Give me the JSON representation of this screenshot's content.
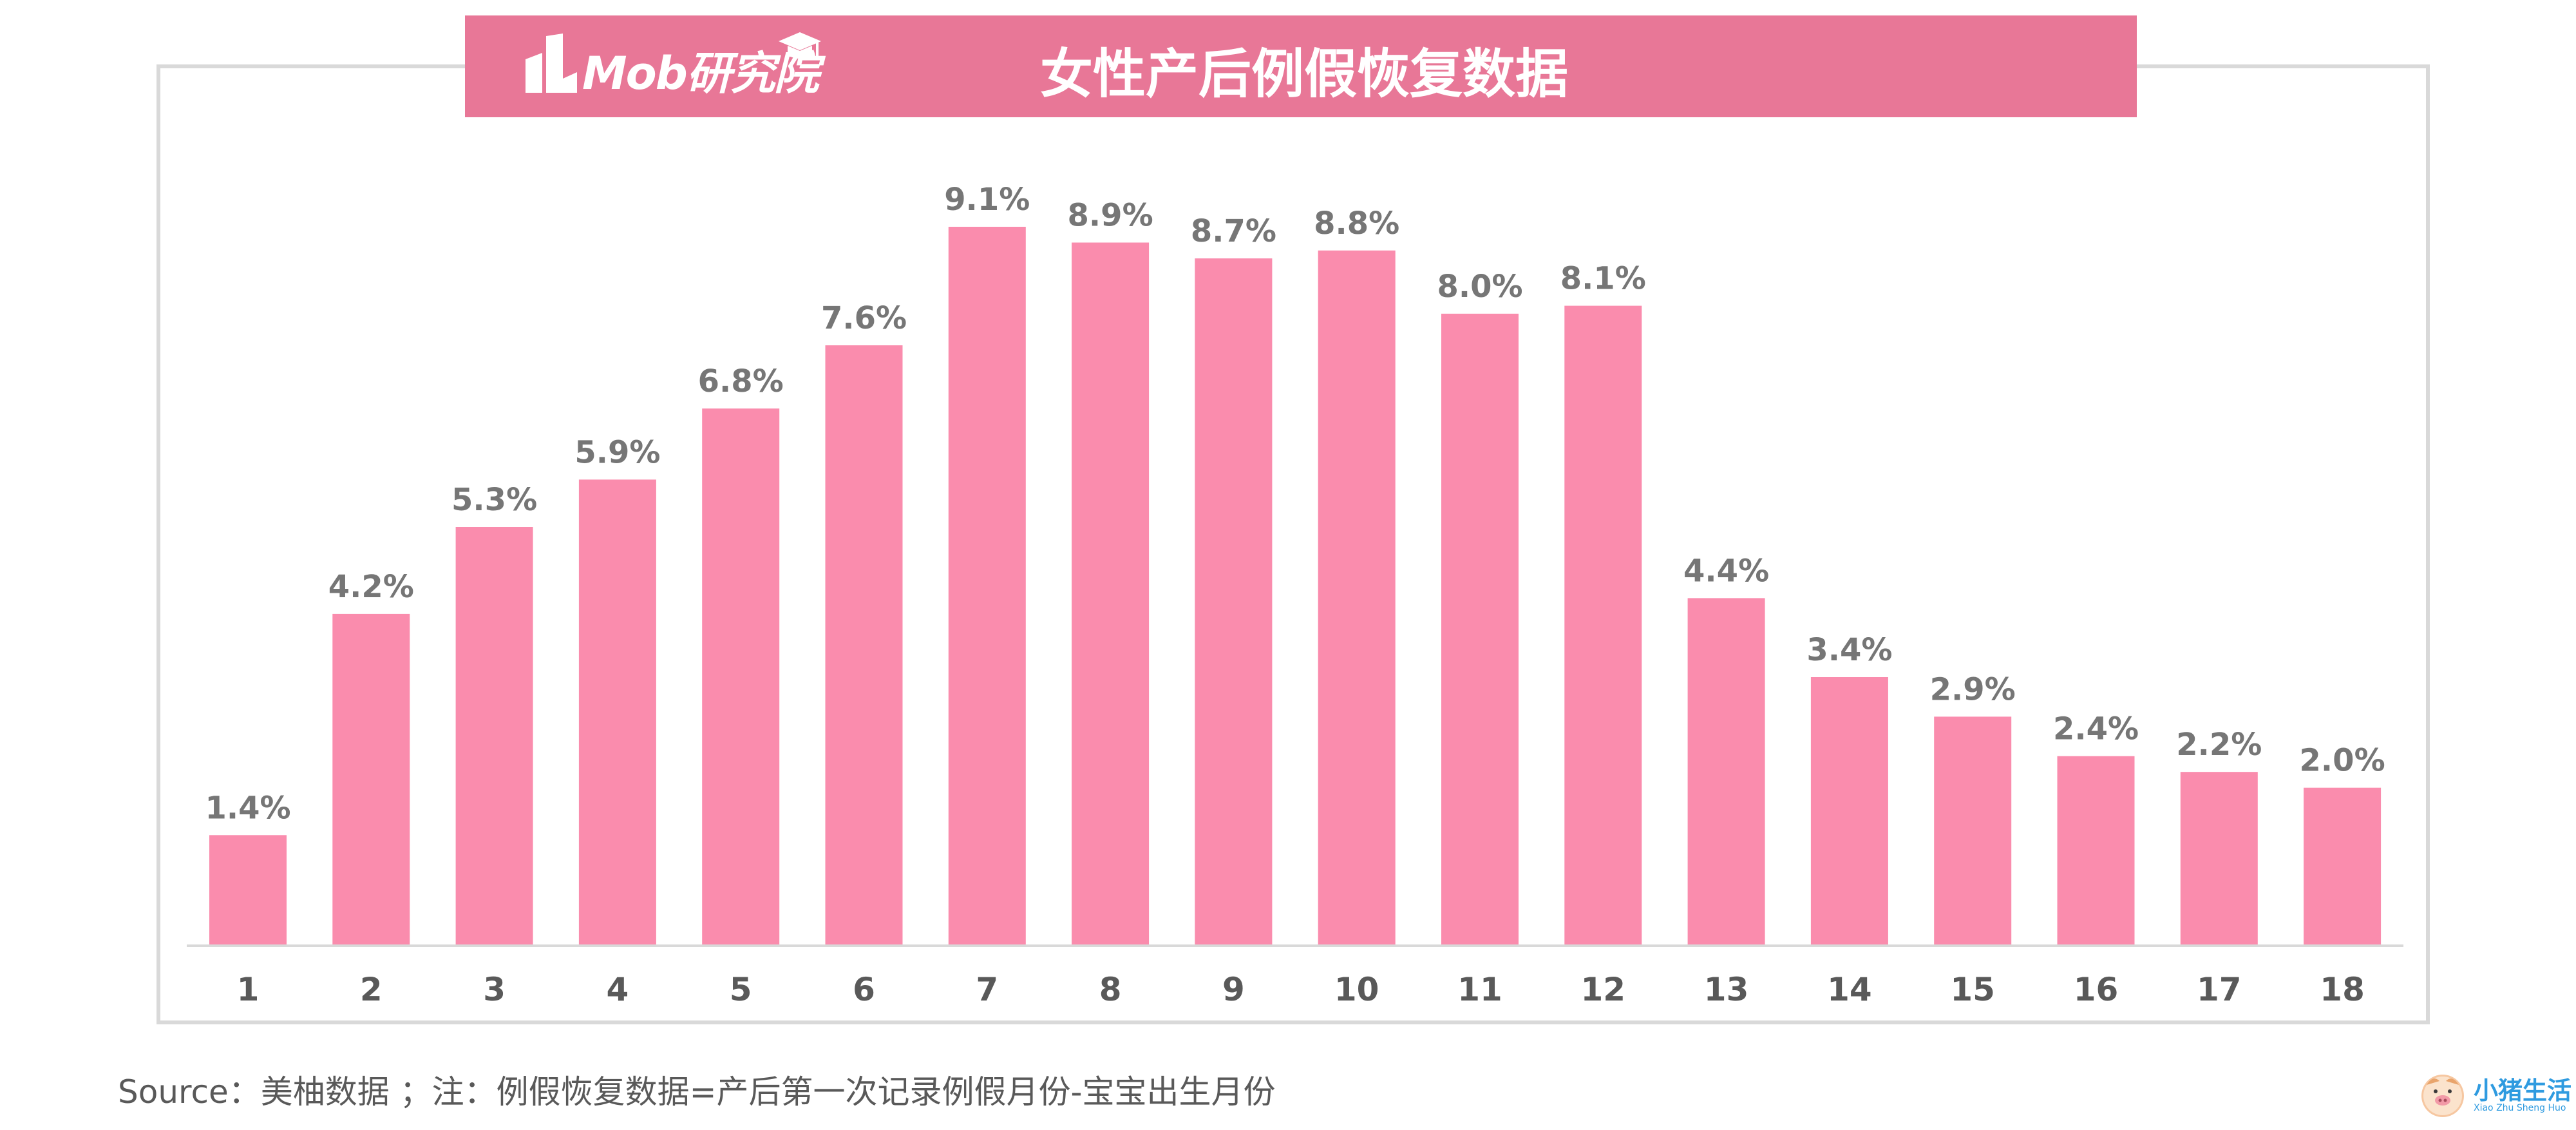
{
  "header": {
    "brand": "Mob研究院",
    "title": "女性产后例假恢复数据"
  },
  "footer": {
    "source": "Source：美柚数据 ；注：例假恢复数据=产后第一次记录例假月份-宝宝出生月份"
  },
  "watermark": {
    "name_cn": "小猪生活",
    "name_en": "Xiao Zhu Sheng Huo"
  },
  "colors": {
    "bar": "#fa8cad",
    "banner": "#e87797",
    "value_label": "#767676",
    "tick_label": "#595959",
    "axis": "#d9d9d9"
  },
  "chart_data": {
    "type": "bar",
    "title": "女性产后例假恢复数据",
    "xlabel": "",
    "ylabel": "",
    "categories": [
      "1",
      "2",
      "3",
      "4",
      "5",
      "6",
      "7",
      "8",
      "9",
      "10",
      "11",
      "12",
      "13",
      "14",
      "15",
      "16",
      "17",
      "18"
    ],
    "values": [
      1.4,
      4.2,
      5.3,
      5.9,
      6.8,
      7.6,
      9.1,
      8.9,
      8.7,
      8.8,
      8.0,
      8.1,
      4.4,
      3.4,
      2.9,
      2.4,
      2.2,
      2.0
    ],
    "labels": [
      "1.4%",
      "4.2%",
      "5.3%",
      "5.9%",
      "6.8%",
      "7.6%",
      "9.1%",
      "8.9%",
      "8.7%",
      "8.8%",
      "8.0%",
      "8.1%",
      "4.4%",
      "3.4%",
      "2.9%",
      "2.4%",
      "2.2%",
      "2.0%"
    ],
    "unit": "%",
    "ylim": [
      0,
      9.1
    ],
    "grid": false,
    "legend": "none"
  }
}
